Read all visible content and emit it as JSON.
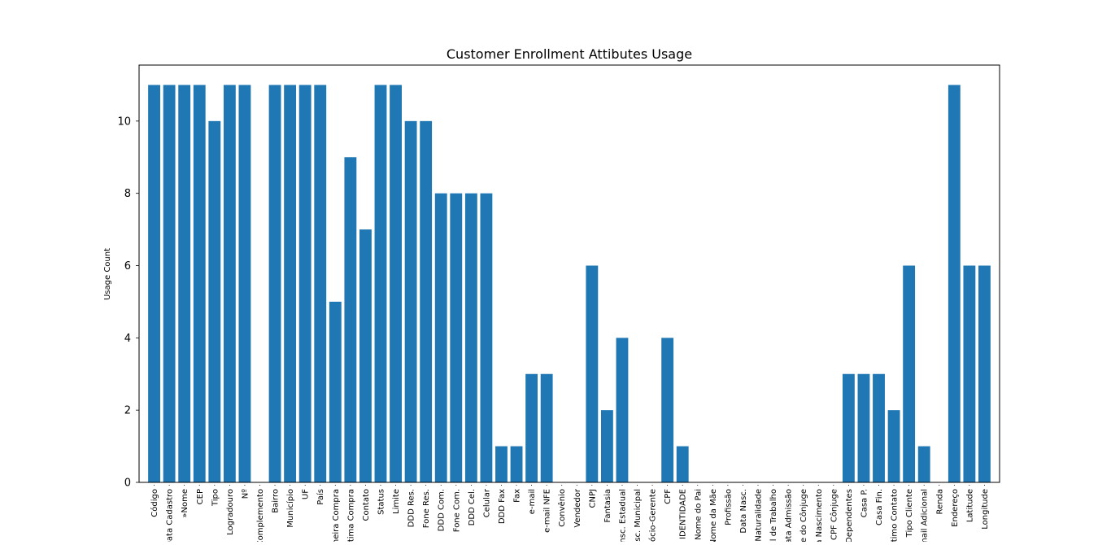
{
  "chart_data": {
    "type": "bar",
    "title": "Customer Enrollment Attibutes Usage",
    "xlabel": "",
    "ylabel": "Usage Count",
    "ylim": [
      0,
      11.55
    ],
    "yticks": [
      0,
      2,
      4,
      6,
      8,
      10
    ],
    "grid": false,
    "bar_color": "#1f77b4",
    "categories": [
      "Código",
      "Data Cadastro",
      "»Nome",
      "CEP",
      "Tipo",
      "Logradouro",
      "Nº",
      "Complemento",
      "Bairro",
      "Município",
      "UF",
      "País",
      "Primeira Compra",
      "Última Compra",
      "Contato",
      "Status",
      "Limite",
      "DDD Res.",
      "Fone Res.",
      "DDD Com.",
      "Fone Com.",
      "DDD Cel.",
      "Celular",
      "DDD Fax",
      "Fax",
      "e-mail",
      "e-mail NFE",
      "Convênio",
      "Vendedor",
      "CNPJ",
      "Fantasia",
      "Insc. Estadual",
      "Insc. Municipal",
      "Sócio-Gerente",
      "CPF",
      "IDENTIDADE",
      "Nome do Pai",
      "Nome da Mãe",
      "Profissão",
      "Data Nasc.",
      "Naturalidade",
      "Local de Trabalho",
      "Data Admissão",
      "Nome do Cônjuge",
      "Data Nascimento",
      "CPF Cônjuge",
      "Dependentes",
      "Casa P.",
      "Casa Fin.",
      "Último Contato",
      "Tipo Cliente",
      "E-mail Adicional",
      "Renda",
      "Endereço",
      "Latitude",
      "Longitude"
    ],
    "values": [
      11,
      11,
      11,
      11,
      10,
      11,
      11,
      0,
      11,
      11,
      11,
      11,
      5,
      9,
      7,
      11,
      11,
      10,
      10,
      8,
      8,
      8,
      8,
      1,
      1,
      3,
      3,
      0,
      0,
      6,
      2,
      4,
      0,
      0,
      4,
      1,
      0,
      0,
      0,
      0,
      0,
      0,
      0,
      0,
      0,
      0,
      3,
      3,
      3,
      2,
      6,
      1,
      0,
      11,
      6,
      6
    ]
  }
}
